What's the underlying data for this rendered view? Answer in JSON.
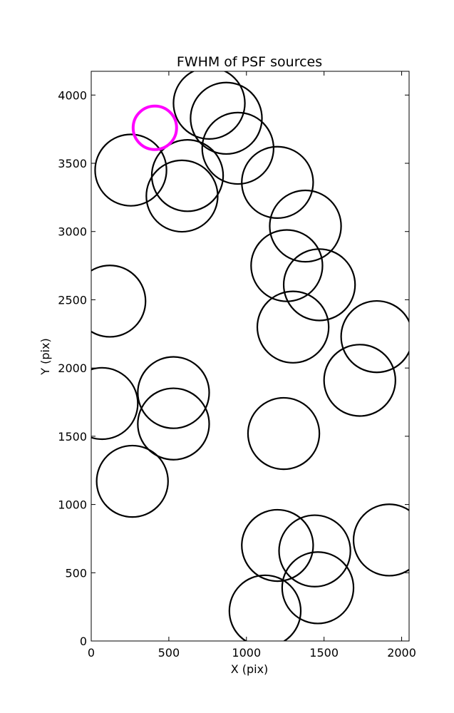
{
  "chart_data": {
    "type": "scatter",
    "title": "FWHM of PSF sources",
    "xlabel": "X (pix)",
    "ylabel": "Y (pix)",
    "xlim": [
      0,
      2048
    ],
    "ylim": [
      0,
      4174
    ],
    "xticks": [
      0,
      500,
      1000,
      1500,
      2000
    ],
    "yticks": [
      0,
      500,
      1000,
      1500,
      2000,
      2500,
      3000,
      3500,
      4000
    ],
    "grid": false,
    "marker": "open circle",
    "series": [
      {
        "color": "#000000",
        "points": [
          {
            "x": 255,
            "y": 3450,
            "r": 230
          },
          {
            "x": 620,
            "y": 3410,
            "r": 230
          },
          {
            "x": 585,
            "y": 3260,
            "r": 230
          },
          {
            "x": 760,
            "y": 3940,
            "r": 230
          },
          {
            "x": 870,
            "y": 3830,
            "r": 230
          },
          {
            "x": 945,
            "y": 3610,
            "r": 230
          },
          {
            "x": 1200,
            "y": 3360,
            "r": 230
          },
          {
            "x": 1380,
            "y": 3040,
            "r": 230
          },
          {
            "x": 1260,
            "y": 2750,
            "r": 230
          },
          {
            "x": 1470,
            "y": 2610,
            "r": 230
          },
          {
            "x": 1300,
            "y": 2300,
            "r": 230
          },
          {
            "x": 120,
            "y": 2490,
            "r": 230
          },
          {
            "x": 1840,
            "y": 2230,
            "r": 230
          },
          {
            "x": 1730,
            "y": 1910,
            "r": 230
          },
          {
            "x": 70,
            "y": 1740,
            "r": 230
          },
          {
            "x": 530,
            "y": 1820,
            "r": 230
          },
          {
            "x": 530,
            "y": 1590,
            "r": 230
          },
          {
            "x": 1240,
            "y": 1520,
            "r": 230
          },
          {
            "x": 265,
            "y": 1170,
            "r": 230
          },
          {
            "x": 1200,
            "y": 700,
            "r": 230
          },
          {
            "x": 1440,
            "y": 660,
            "r": 230
          },
          {
            "x": 1460,
            "y": 390,
            "r": 230
          },
          {
            "x": 1120,
            "y": 220,
            "r": 230
          },
          {
            "x": 1920,
            "y": 740,
            "r": 230
          }
        ]
      },
      {
        "color": "#ff00ff",
        "points": [
          {
            "x": 410,
            "y": 3760,
            "r": 140
          }
        ]
      }
    ]
  }
}
